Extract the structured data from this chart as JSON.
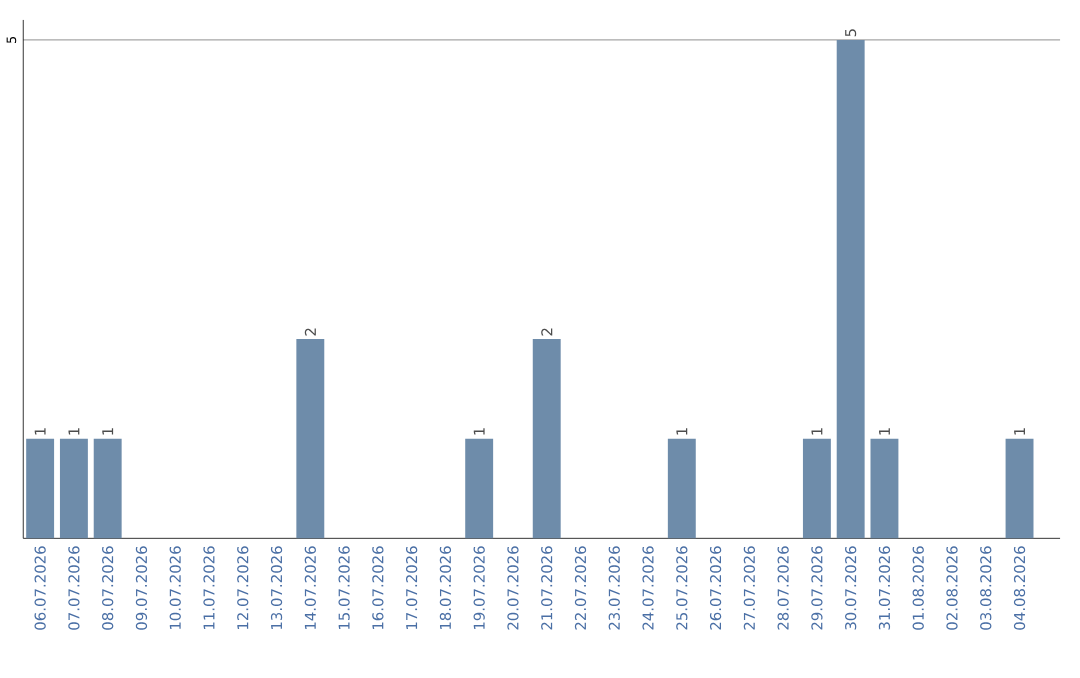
{
  "chart_data": {
    "type": "bar",
    "categories": [
      "06.07.2026",
      "07.07.2026",
      "08.07.2026",
      "09.07.2026",
      "10.07.2026",
      "11.07.2026",
      "12.07.2026",
      "13.07.2026",
      "14.07.2026",
      "15.07.2026",
      "16.07.2026",
      "17.07.2026",
      "18.07.2026",
      "19.07.2026",
      "20.07.2026",
      "21.07.2026",
      "22.07.2026",
      "23.07.2026",
      "24.07.2026",
      "25.07.2026",
      "26.07.2026",
      "27.07.2026",
      "28.07.2026",
      "29.07.2026",
      "30.07.2026",
      "31.07.2026",
      "01.08.2026",
      "02.08.2026",
      "03.08.2026",
      "04.08.2026"
    ],
    "values": [
      1,
      1,
      1,
      0,
      0,
      0,
      0,
      0,
      2,
      0,
      0,
      0,
      0,
      1,
      0,
      2,
      0,
      0,
      0,
      1,
      0,
      0,
      0,
      1,
      5,
      1,
      0,
      0,
      0,
      1
    ],
    "value_labels": [
      "1",
      "1",
      "1",
      null,
      null,
      null,
      null,
      null,
      "2",
      null,
      null,
      null,
      null,
      "1",
      null,
      "2",
      null,
      null,
      null,
      "1",
      null,
      null,
      null,
      "1",
      "5",
      "1",
      null,
      null,
      null,
      "1"
    ],
    "color": "#6e8caa",
    "ylim": [
      0,
      5.2
    ],
    "yticks": [
      5
    ],
    "grid": "y"
  }
}
